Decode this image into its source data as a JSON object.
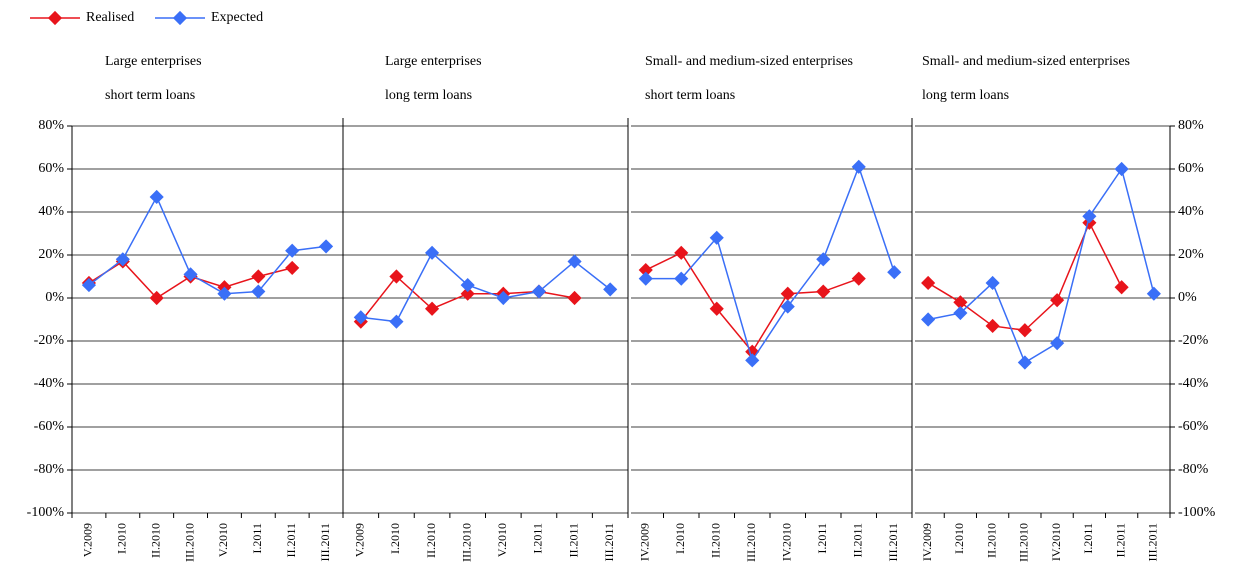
{
  "chart_data": [
    {
      "type": "line",
      "title": [
        "Large enterprises",
        "short term loans"
      ],
      "categories": [
        "V.2009",
        "I.2010",
        "II.2010",
        "III.2010",
        "V.2010",
        "I.2011",
        "II.2011",
        "III.2011"
      ],
      "series": [
        {
          "name": "Realised",
          "color": "#e8141b",
          "values": [
            7,
            17,
            0,
            10,
            5,
            10,
            14,
            null
          ]
        },
        {
          "name": "Expected",
          "color": "#3a6ff7",
          "values": [
            6,
            18,
            47,
            11,
            2,
            3,
            22,
            24
          ]
        }
      ],
      "ylim": [
        -100,
        80
      ],
      "y_axis_side": "left",
      "yticks": [
        {
          "value": -100,
          "label": "-100%"
        },
        {
          "value": -80,
          "label": "-80%"
        },
        {
          "value": -60,
          "label": "-60%"
        },
        {
          "value": -40,
          "label": "-40%"
        },
        {
          "value": -20,
          "label": "-20%"
        },
        {
          "value": 0,
          "label": "0%"
        },
        {
          "value": 20,
          "label": "20%"
        },
        {
          "value": 40,
          "label": "40%"
        },
        {
          "value": 60,
          "label": "60%"
        },
        {
          "value": 80,
          "label": "80%"
        }
      ],
      "grid": true
    },
    {
      "type": "line",
      "title": [
        "Large enterprises",
        "long term loans"
      ],
      "categories": [
        "V.2009",
        "I.2010",
        "II.2010",
        "III.2010",
        "V.2010",
        "I.2011",
        "II.2011",
        "III.2011"
      ],
      "series": [
        {
          "name": "Realised",
          "color": "#e8141b",
          "values": [
            -11,
            10,
            -5,
            2,
            2,
            3,
            0,
            null
          ]
        },
        {
          "name": "Expected",
          "color": "#3a6ff7",
          "values": [
            -9,
            -11,
            21,
            6,
            0,
            3,
            17,
            4
          ]
        }
      ],
      "ylim": [
        -100,
        80
      ],
      "yticks": [
        -100,
        -80,
        -60,
        -40,
        -20,
        0,
        20,
        40,
        60,
        80
      ],
      "grid": true
    },
    {
      "type": "line",
      "title": [
        "Small- and medium-sized enterprises",
        "short term loans"
      ],
      "categories": [
        "IV.2009",
        "I.2010",
        "II.2010",
        "III.2010",
        "IV.2010",
        "I.2011",
        "II.2011",
        "III.2011"
      ],
      "series": [
        {
          "name": "Realised",
          "color": "#e8141b",
          "values": [
            13,
            21,
            -5,
            -25,
            2,
            3,
            9,
            null
          ]
        },
        {
          "name": "Expected",
          "color": "#3a6ff7",
          "values": [
            9,
            9,
            28,
            -29,
            -4,
            18,
            61,
            12
          ]
        }
      ],
      "ylim": [
        -100,
        80
      ],
      "yticks": [
        -100,
        -80,
        -60,
        -40,
        -20,
        0,
        20,
        40,
        60,
        80
      ],
      "grid": true
    },
    {
      "type": "line",
      "title": [
        "Small- and medium-sized enterprises",
        "long  term loans"
      ],
      "categories": [
        "IV.2009",
        "I.2010",
        "II.2010",
        "III.2010",
        "IV.2010",
        "I.2011",
        "II.2011",
        "III.2011"
      ],
      "series": [
        {
          "name": "Realised",
          "color": "#e8141b",
          "values": [
            7,
            -2,
            -13,
            -15,
            -1,
            35,
            5,
            null
          ]
        },
        {
          "name": "Expected",
          "color": "#3a6ff7",
          "values": [
            -10,
            -7,
            7,
            -30,
            -21,
            38,
            60,
            2
          ]
        }
      ],
      "ylim": [
        -100,
        80
      ],
      "y_axis_side": "right",
      "yticks": [
        {
          "value": -100,
          "label": "-100%"
        },
        {
          "value": -80,
          "label": "-80%"
        },
        {
          "value": -60,
          "label": "-60%"
        },
        {
          "value": -40,
          "label": "-40%"
        },
        {
          "value": -20,
          "label": "-20%"
        },
        {
          "value": 0,
          "label": "0%"
        },
        {
          "value": 20,
          "label": "20%"
        },
        {
          "value": 40,
          "label": "40%"
        },
        {
          "value": 60,
          "label": "60%"
        },
        {
          "value": 80,
          "label": "80%"
        }
      ],
      "grid": true
    }
  ]
}
